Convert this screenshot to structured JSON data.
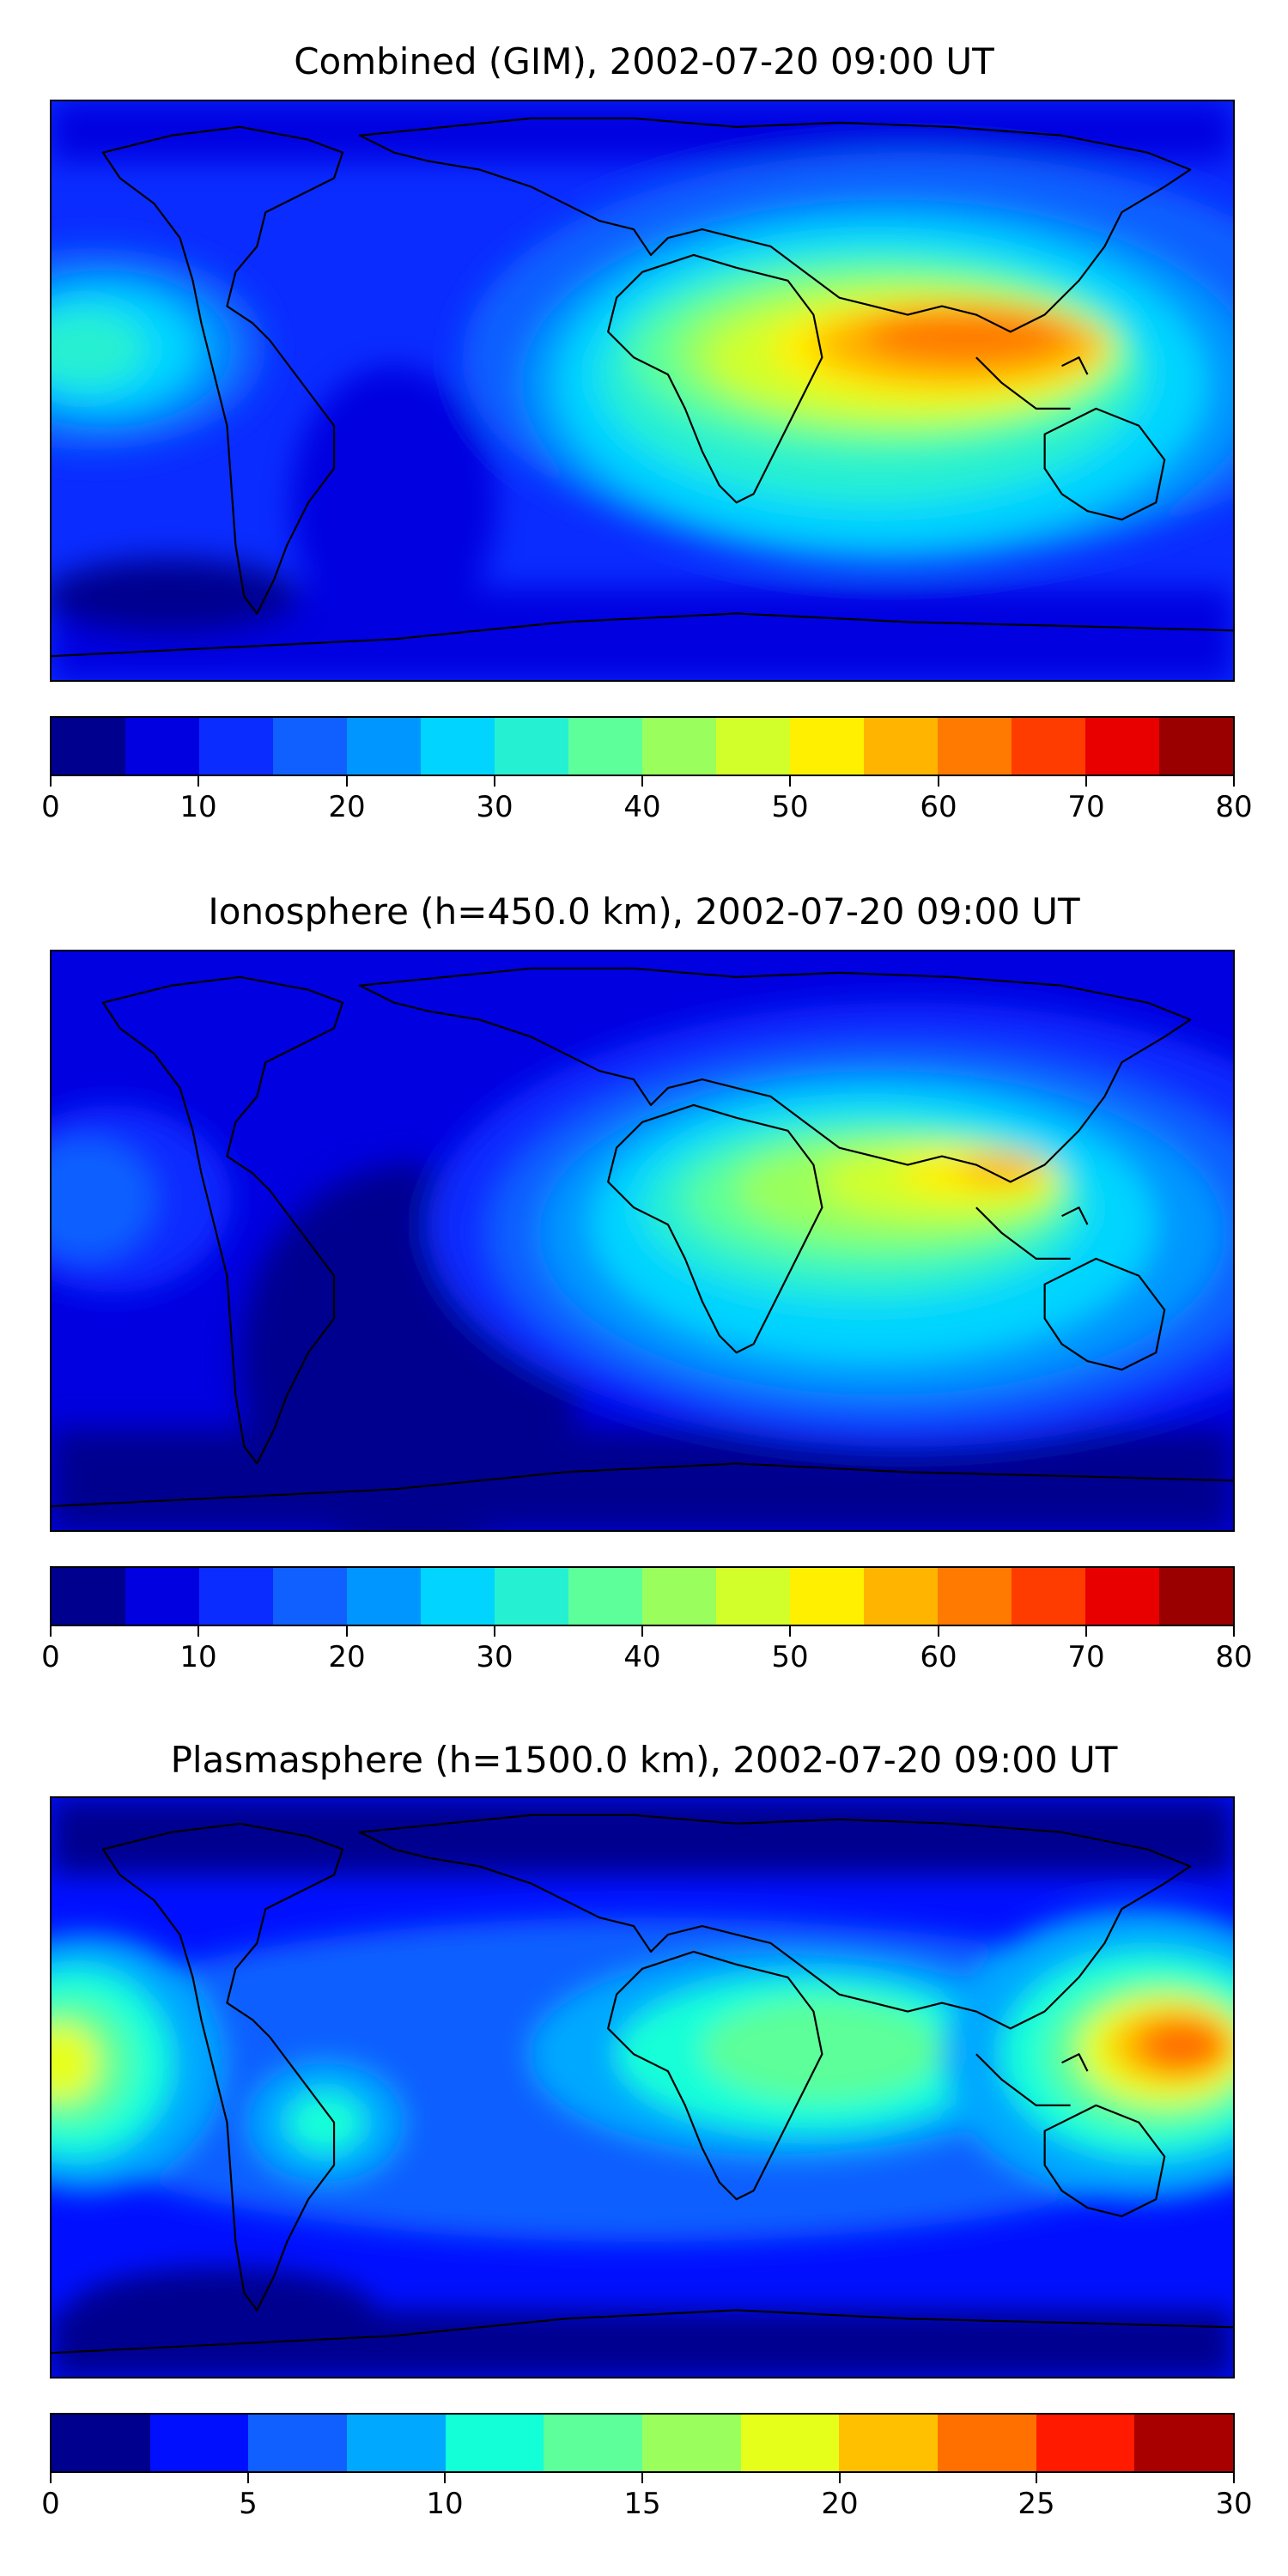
{
  "panels": [
    {
      "title": "Combined (GIM), 2002-07-20 09:00 UT",
      "colorbar": {
        "ticks": [
          "0",
          "10",
          "20",
          "30",
          "40",
          "50",
          "60",
          "70",
          "80"
        ],
        "range": [
          0,
          80
        ],
        "levels": 16,
        "colors": [
          "#00008f",
          "#0000e0",
          "#0a2cff",
          "#1060ff",
          "#0096ff",
          "#00d4ff",
          "#25f0d2",
          "#5cff99",
          "#9aff5c",
          "#d2ff2a",
          "#fff000",
          "#ffb400",
          "#ff7a00",
          "#ff3c00",
          "#e80000",
          "#9a0000"
        ]
      }
    },
    {
      "title": "Ionosphere  (h=450.0 km), 2002-07-20 09:00 UT",
      "colorbar": {
        "ticks": [
          "0",
          "10",
          "20",
          "30",
          "40",
          "50",
          "60",
          "70",
          "80"
        ],
        "range": [
          0,
          80
        ],
        "levels": 16,
        "colors": [
          "#00008f",
          "#0000e0",
          "#0a2cff",
          "#1060ff",
          "#0096ff",
          "#00d4ff",
          "#25f0d2",
          "#5cff99",
          "#9aff5c",
          "#d2ff2a",
          "#fff000",
          "#ffb400",
          "#ff7a00",
          "#ff3c00",
          "#e80000",
          "#9a0000"
        ]
      }
    },
    {
      "title": "Plasmasphere (h=1500.0 km), 2002-07-20 09:00 UT",
      "colorbar": {
        "ticks": [
          "0",
          "5",
          "10",
          "15",
          "20",
          "25",
          "30"
        ],
        "range": [
          0,
          30
        ],
        "levels": 12,
        "colors": [
          "#00008f",
          "#0010ff",
          "#1060ff",
          "#00a8ff",
          "#12ffd8",
          "#5cff99",
          "#9aff5c",
          "#e6ff1a",
          "#ffc000",
          "#ff7000",
          "#ff1a00",
          "#a80000"
        ]
      }
    }
  ]
}
